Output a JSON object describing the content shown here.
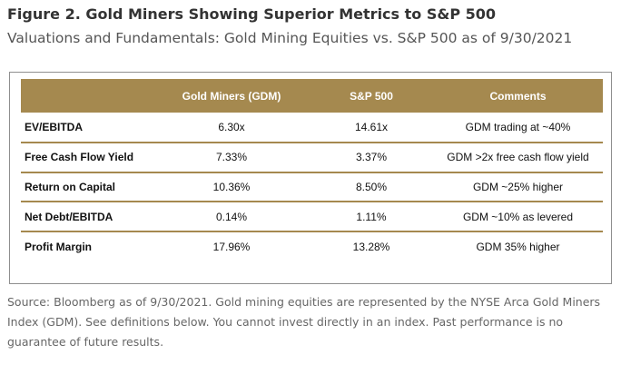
{
  "figure": {
    "title": "Figure 2. Gold Miners Showing Superior Metrics to S&P 500",
    "subtitle": "Valuations and Fundamentals: Gold Mining Equities vs. S&P 500 as of 9/30/2021"
  },
  "table": {
    "header": {
      "metric": "",
      "gdm": "Gold Miners (GDM)",
      "sp500": "S&P 500",
      "comments": "Comments"
    },
    "rows": [
      {
        "metric": "EV/EBITDA",
        "gdm": "6.30x",
        "sp500": "14.61x",
        "comments": "GDM trading at ~40%"
      },
      {
        "metric": "Free Cash Flow Yield",
        "gdm": "7.33%",
        "sp500": "3.37%",
        "comments": "GDM >2x free cash flow yield"
      },
      {
        "metric": "Return on Capital",
        "gdm": "10.36%",
        "sp500": "8.50%",
        "comments": "GDM ~25% higher"
      },
      {
        "metric": "Net Debt/EBITDA",
        "gdm": "0.14%",
        "sp500": "1.11%",
        "comments": "GDM ~10% as levered"
      },
      {
        "metric": "Profit Margin",
        "gdm": "17.96%",
        "sp500": "13.28%",
        "comments": "GDM 35% higher"
      }
    ],
    "colors": {
      "header_background": "#a5894f",
      "row_divider": "#a5894f"
    }
  },
  "source_note": "Source: Bloomberg as of 9/30/2021. Gold mining equities are represented by the NYSE Arca Gold Miners Index (GDM). See definitions below. You cannot invest directly in an index. Past performance is no guarantee of future results."
}
